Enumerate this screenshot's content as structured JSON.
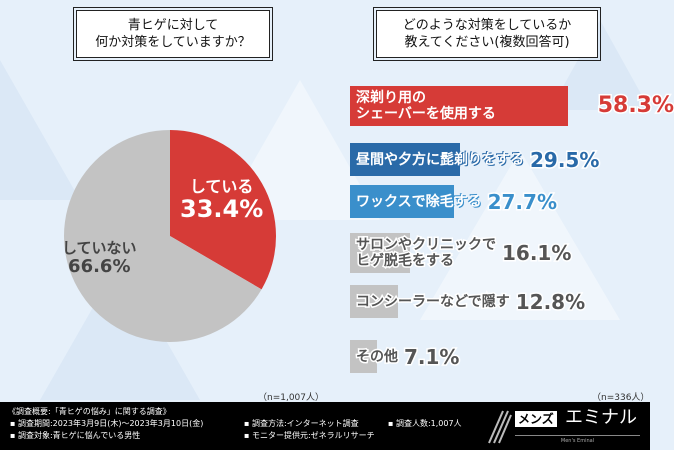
{
  "left": {
    "question": [
      "青ヒゲに対して",
      "何か対策をしていますか？"
    ],
    "sample": "（n=1,007人）"
  },
  "right": {
    "question": [
      "どのような対策をしているか",
      "教えてください(複数回答可)"
    ],
    "sample": "（n=336人）"
  },
  "colors": {
    "red": "#d63b37",
    "blue_dark": "#2a6aa8",
    "blue": "#3a8fcb",
    "gray": "#c3c3c3",
    "gray_text": "#555555",
    "background": "#e6f0fa"
  },
  "chart_data": [
    {
      "type": "pie",
      "slices": [
        {
          "label": "している",
          "value": 33.4,
          "display": "33.4%",
          "color": "#d63b37"
        },
        {
          "label": "していない",
          "value": 66.6,
          "display": "66.6%",
          "color": "#c3c3c3"
        }
      ]
    },
    {
      "type": "bar",
      "orientation": "horizontal",
      "categories": [
        "深剃り用の\nシェーバーを使用する",
        "昼間や夕方に髭剃りをする",
        "ワックスで除毛する",
        "サロンやクリニックで\nヒゲ脱毛をする",
        "コンシーラーなどで隠す",
        "その他"
      ],
      "values": [
        58.3,
        29.5,
        27.7,
        16.1,
        12.8,
        7.1
      ],
      "labels": [
        "58.3%",
        "29.5%",
        "27.7%",
        "16.1%",
        "12.8%",
        "7.1%"
      ],
      "colors": [
        "#d63b37",
        "#2a6aa8",
        "#3a8fcb",
        "#c3c3c3",
        "#c3c3c3",
        "#c3c3c3"
      ]
    }
  ],
  "footer": {
    "title": "《調査概要:「青ヒゲの悩み」に関する調査》",
    "period": "▪ 調査期間:2023年3月9日(木)～2023年3月10日(金)",
    "target": "▪ 調査対象:青ヒゲに悩んでいる男性",
    "method": "▪ 調査方法:インターネット調査",
    "provider": "▪ モニター提供元:ゼネラルリサーチ",
    "count": "▪ 調査人数:1,007人"
  },
  "logo": {
    "text1": "メンズ",
    "text2": "エミナル",
    "sub": "Men's Eminal"
  }
}
